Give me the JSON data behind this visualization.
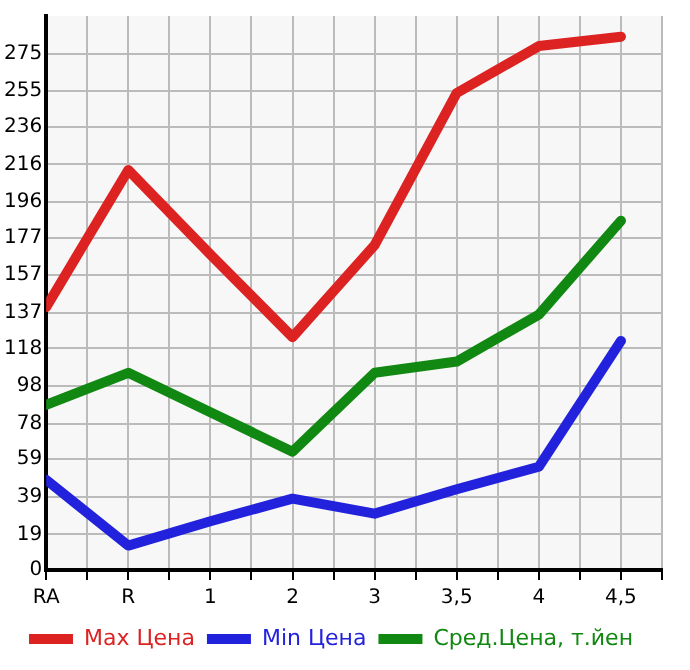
{
  "chart_data": {
    "type": "line",
    "categories": [
      "RA",
      "R",
      "1",
      "2",
      "3",
      "3,5",
      "4",
      "4,5"
    ],
    "series": [
      {
        "name": "Max Цена",
        "color": "#dd2222",
        "values": [
          140,
          213,
          168,
          124,
          173,
          254,
          279,
          284
        ]
      },
      {
        "name": "Min Цена",
        "color": "#2222dd",
        "values": [
          48,
          13,
          26,
          38,
          30,
          43,
          55,
          122
        ]
      },
      {
        "name": "Сред.Цена, т.йен",
        "color": "#118811",
        "values": [
          88,
          105,
          84,
          63,
          105,
          111,
          136,
          186
        ]
      }
    ],
    "ylim": [
      0,
      295
    ],
    "yticks": [
      0,
      19,
      39,
      59,
      78,
      98,
      118,
      137,
      157,
      177,
      196,
      216,
      236,
      255,
      275
    ],
    "grid": true,
    "legend": "bottom",
    "marker": "none",
    "line_style": "solid"
  }
}
